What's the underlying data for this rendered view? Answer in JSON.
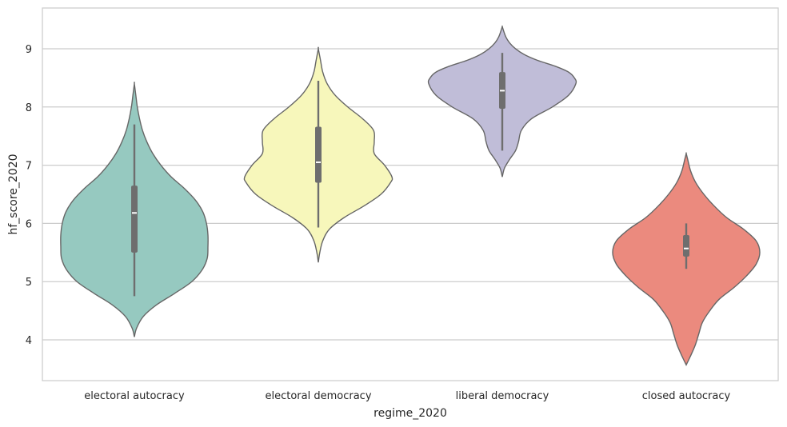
{
  "chart_data": {
    "type": "violin",
    "title": "",
    "xlabel": "regime_2020",
    "ylabel": "hf_score_2020",
    "categories": [
      "electoral autocracy",
      "electoral democracy",
      "liberal democracy",
      "closed autocracy"
    ],
    "ylim": [
      3.3,
      9.7
    ],
    "yticks": [
      "4",
      "5",
      "6",
      "7",
      "8",
      "9"
    ],
    "grid": "horizontal",
    "legend": "none",
    "colors": [
      "#96c9c0",
      "#f7f7bb",
      "#c0bdd8",
      "#eb8a7e"
    ],
    "edge_color": "#666666",
    "box_color": "#6e6e6e",
    "violins": [
      {
        "category": "electoral autocracy",
        "kde": [
          [
            4.05,
            0.0
          ],
          [
            4.2,
            0.03
          ],
          [
            4.4,
            0.12
          ],
          [
            4.6,
            0.3
          ],
          [
            4.8,
            0.55
          ],
          [
            5.0,
            0.78
          ],
          [
            5.2,
            0.92
          ],
          [
            5.4,
            0.99
          ],
          [
            5.6,
            1.0
          ],
          [
            5.8,
            1.0
          ],
          [
            6.0,
            0.98
          ],
          [
            6.2,
            0.93
          ],
          [
            6.4,
            0.83
          ],
          [
            6.6,
            0.68
          ],
          [
            6.8,
            0.5
          ],
          [
            7.0,
            0.36
          ],
          [
            7.2,
            0.25
          ],
          [
            7.4,
            0.17
          ],
          [
            7.6,
            0.11
          ],
          [
            7.8,
            0.07
          ],
          [
            8.0,
            0.04
          ],
          [
            8.2,
            0.02
          ],
          [
            8.4,
            0.0
          ]
        ],
        "whisker": [
          4.75,
          7.7
        ],
        "q1": 5.5,
        "q3": 6.65,
        "median": 6.18
      },
      {
        "category": "electoral democracy",
        "kde": [
          [
            5.33,
            0.0
          ],
          [
            5.5,
            0.02
          ],
          [
            5.7,
            0.06
          ],
          [
            5.9,
            0.15
          ],
          [
            6.1,
            0.35
          ],
          [
            6.3,
            0.62
          ],
          [
            6.5,
            0.85
          ],
          [
            6.7,
            0.98
          ],
          [
            6.8,
            1.0
          ],
          [
            7.0,
            0.9
          ],
          [
            7.2,
            0.76
          ],
          [
            7.4,
            0.76
          ],
          [
            7.6,
            0.75
          ],
          [
            7.8,
            0.6
          ],
          [
            8.0,
            0.4
          ],
          [
            8.2,
            0.23
          ],
          [
            8.4,
            0.12
          ],
          [
            8.6,
            0.06
          ],
          [
            8.8,
            0.03
          ],
          [
            9.0,
            0.0
          ]
        ],
        "whisker": [
          5.93,
          8.45
        ],
        "q1": 6.7,
        "q3": 7.66,
        "median": 7.05
      },
      {
        "category": "liberal democracy",
        "kde": [
          [
            6.8,
            0.0
          ],
          [
            6.95,
            0.03
          ],
          [
            7.1,
            0.1
          ],
          [
            7.25,
            0.18
          ],
          [
            7.4,
            0.22
          ],
          [
            7.6,
            0.26
          ],
          [
            7.8,
            0.4
          ],
          [
            8.0,
            0.68
          ],
          [
            8.2,
            0.9
          ],
          [
            8.4,
            1.0
          ],
          [
            8.5,
            0.98
          ],
          [
            8.6,
            0.9
          ],
          [
            8.7,
            0.72
          ],
          [
            8.8,
            0.48
          ],
          [
            8.9,
            0.3
          ],
          [
            9.0,
            0.18
          ],
          [
            9.1,
            0.1
          ],
          [
            9.2,
            0.05
          ],
          [
            9.3,
            0.02
          ],
          [
            9.38,
            0.0
          ]
        ],
        "whisker": [
          7.25,
          8.93
        ],
        "q1": 7.97,
        "q3": 8.6,
        "median": 8.28
      },
      {
        "category": "closed autocracy",
        "kde": [
          [
            3.57,
            0.0
          ],
          [
            3.7,
            0.05
          ],
          [
            3.9,
            0.12
          ],
          [
            4.1,
            0.17
          ],
          [
            4.3,
            0.22
          ],
          [
            4.5,
            0.32
          ],
          [
            4.7,
            0.45
          ],
          [
            4.9,
            0.65
          ],
          [
            5.1,
            0.82
          ],
          [
            5.3,
            0.95
          ],
          [
            5.5,
            1.0
          ],
          [
            5.7,
            0.95
          ],
          [
            5.9,
            0.78
          ],
          [
            6.1,
            0.55
          ],
          [
            6.3,
            0.38
          ],
          [
            6.5,
            0.24
          ],
          [
            6.7,
            0.13
          ],
          [
            6.9,
            0.06
          ],
          [
            7.1,
            0.02
          ],
          [
            7.2,
            0.0
          ]
        ],
        "whisker": [
          5.22,
          6.0
        ],
        "q1": 5.43,
        "q3": 5.8,
        "median": 5.57
      }
    ]
  }
}
